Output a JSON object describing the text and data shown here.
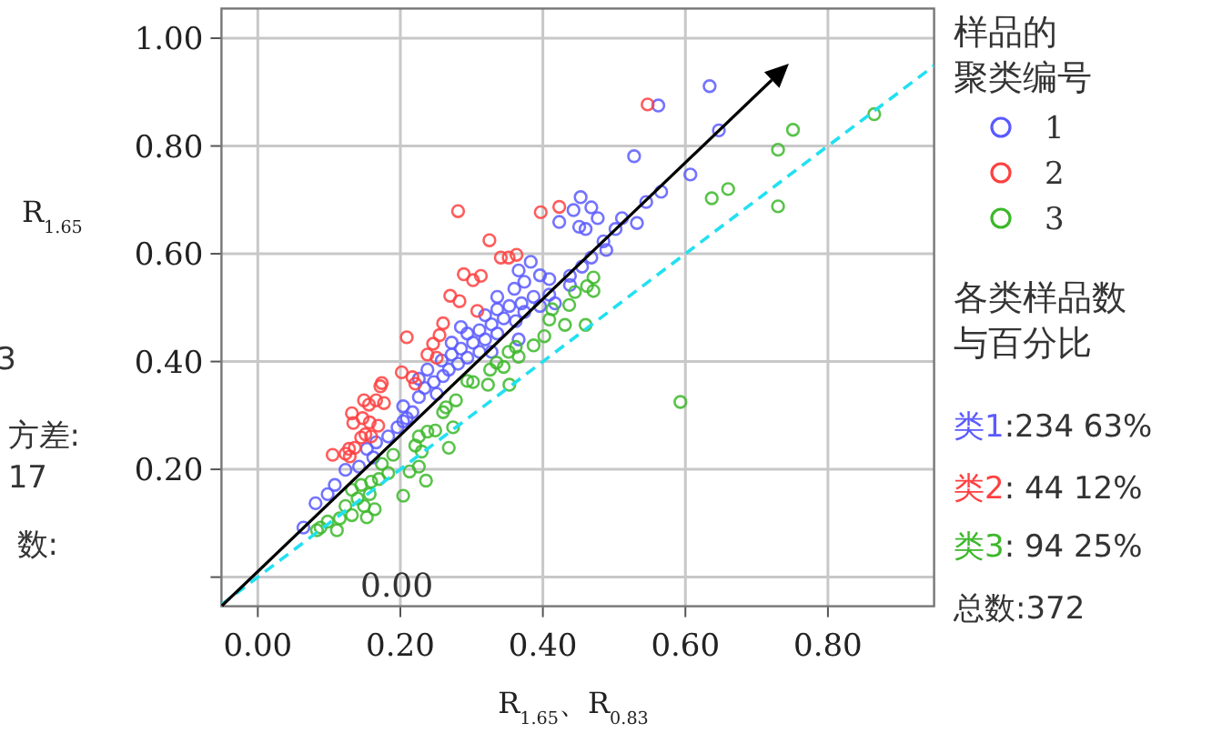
{
  "chart_data": {
    "type": "scatter",
    "xlabel": "R$_{1.65}$、R$_{0.83}$",
    "ylabel": "R$_{1.65}$",
    "legend_title": "样品的聚类编号",
    "legend": "right",
    "grid": true,
    "xlim": [
      -0.051,
      0.949
    ],
    "ylim": [
      -0.054,
      1.055
    ],
    "xticks": [
      {
        "value": 0,
        "label": "0.00"
      },
      {
        "value": 0.2,
        "label": "0.20"
      },
      {
        "value": 0.4,
        "label": "0.40"
      },
      {
        "value": 0.6,
        "label": "0.60"
      },
      {
        "value": 0.8,
        "label": "0.80"
      }
    ],
    "yticks": [
      {
        "value": 0,
        "label": null
      },
      {
        "value": 0.2,
        "label": "0.20"
      },
      {
        "value": 0.4,
        "label": "0.40"
      },
      {
        "value": 0.6,
        "label": "0.60"
      },
      {
        "value": 0.8,
        "label": "0.80"
      },
      {
        "value": 1,
        "label": "1.00"
      }
    ],
    "annotations": [
      "0.00",
      "各类样品数与百分比",
      "类1:234  63%",
      "类2: 44  12%",
      "类3: 94  25%",
      "总数:372",
      "3",
      "方差:",
      "17",
      "数:"
    ],
    "series": [
      {
        "name": "1",
        "color": "#5a5aff",
        "marker": "circle",
        "x": [
          0.634,
          0.562,
          0.647,
          0.528,
          0.607,
          0.566,
          0.545,
          0.532,
          0.511,
          0.502,
          0.453,
          0.468,
          0.443,
          0.423,
          0.451,
          0.46,
          0.477,
          0.485,
          0.468,
          0.455,
          0.383,
          0.366,
          0.396,
          0.36,
          0.409,
          0.387,
          0.37,
          0.353,
          0.336,
          0.374,
          0.396,
          0.417,
          0.319,
          0.345,
          0.328,
          0.362,
          0.311,
          0.294,
          0.336,
          0.319,
          0.302,
          0.285,
          0.272,
          0.311,
          0.294,
          0.281,
          0.268,
          0.26,
          0.247,
          0.234,
          0.226,
          0.204,
          0.217,
          0.196,
          0.209,
          0.183,
          0.166,
          0.153,
          0.162,
          0.142,
          0.123,
          0.108,
          0.098,
          0.081,
          0.064,
          0.489,
          0.438,
          0.374,
          0.336,
          0.285,
          0.272,
          0.366,
          0.409,
          0.438,
          0.328,
          0.258,
          0.238,
          0.226,
          0.251,
          0.204
        ],
        "values": [
          0.911,
          0.875,
          0.829,
          0.781,
          0.747,
          0.715,
          0.696,
          0.657,
          0.666,
          0.646,
          0.705,
          0.686,
          0.681,
          0.659,
          0.65,
          0.646,
          0.666,
          0.623,
          0.593,
          0.576,
          0.585,
          0.569,
          0.56,
          0.535,
          0.524,
          0.52,
          0.508,
          0.503,
          0.497,
          0.492,
          0.503,
          0.508,
          0.486,
          0.48,
          0.469,
          0.475,
          0.458,
          0.452,
          0.452,
          0.441,
          0.435,
          0.424,
          0.413,
          0.418,
          0.407,
          0.396,
          0.385,
          0.373,
          0.362,
          0.351,
          0.334,
          0.317,
          0.306,
          0.278,
          0.295,
          0.261,
          0.25,
          0.238,
          0.222,
          0.205,
          0.199,
          0.171,
          0.154,
          0.137,
          0.092,
          0.607,
          0.542,
          0.548,
          0.52,
          0.464,
          0.435,
          0.441,
          0.553,
          0.559,
          0.418,
          0.402,
          0.385,
          0.368,
          0.34,
          0.289
        ]
      },
      {
        "name": "2",
        "color": "#ff4040",
        "marker": "circle",
        "x": [
          0.547,
          0.281,
          0.397,
          0.423,
          0.325,
          0.341,
          0.352,
          0.363,
          0.289,
          0.313,
          0.302,
          0.27,
          0.283,
          0.308,
          0.26,
          0.255,
          0.209,
          0.246,
          0.251,
          0.238,
          0.202,
          0.217,
          0.221,
          0.174,
          0.172,
          0.149,
          0.166,
          0.156,
          0.177,
          0.132,
          0.147,
          0.134,
          0.157,
          0.169,
          0.151,
          0.145,
          0.159,
          0.128,
          0.136,
          0.105,
          0.123,
          0.129
        ],
        "values": [
          0.877,
          0.679,
          0.677,
          0.687,
          0.625,
          0.593,
          0.593,
          0.598,
          0.562,
          0.559,
          0.551,
          0.522,
          0.512,
          0.494,
          0.471,
          0.449,
          0.445,
          0.433,
          0.407,
          0.413,
          0.38,
          0.371,
          0.359,
          0.36,
          0.354,
          0.328,
          0.328,
          0.32,
          0.323,
          0.304,
          0.295,
          0.286,
          0.287,
          0.281,
          0.265,
          0.259,
          0.261,
          0.238,
          0.24,
          0.227,
          0.229,
          0.224
        ]
      },
      {
        "name": "3",
        "color": "#3cb82a",
        "marker": "circle",
        "x": [
          0.865,
          0.751,
          0.73,
          0.73,
          0.66,
          0.637,
          0.593,
          0.471,
          0.462,
          0.471,
          0.445,
          0.437,
          0.413,
          0.46,
          0.431,
          0.409,
          0.402,
          0.387,
          0.362,
          0.366,
          0.352,
          0.335,
          0.345,
          0.326,
          0.353,
          0.323,
          0.302,
          0.294,
          0.278,
          0.264,
          0.26,
          0.274,
          0.249,
          0.238,
          0.226,
          0.221,
          0.268,
          0.23,
          0.19,
          0.174,
          0.183,
          0.17,
          0.159,
          0.145,
          0.132,
          0.157,
          0.14,
          0.123,
          0.149,
          0.164,
          0.132,
          0.153,
          0.204,
          0.213,
          0.236,
          0.226,
          0.098,
          0.088,
          0.111,
          0.083,
          0.115
        ],
        "values": [
          0.859,
          0.83,
          0.793,
          0.688,
          0.72,
          0.703,
          0.325,
          0.556,
          0.54,
          0.531,
          0.529,
          0.505,
          0.497,
          0.468,
          0.468,
          0.478,
          0.447,
          0.43,
          0.427,
          0.409,
          0.418,
          0.398,
          0.39,
          0.385,
          0.357,
          0.357,
          0.362,
          0.364,
          0.328,
          0.315,
          0.306,
          0.278,
          0.272,
          0.27,
          0.261,
          0.244,
          0.24,
          0.233,
          0.227,
          0.21,
          0.193,
          0.182,
          0.177,
          0.171,
          0.162,
          0.154,
          0.146,
          0.132,
          0.132,
          0.126,
          0.115,
          0.111,
          0.151,
          0.196,
          0.179,
          0.205,
          0.103,
          0.092,
          0.087,
          0.087,
          0.109
        ]
      },
      {
        "type": "line",
        "color": "#22e0f0",
        "line_style": "dashed",
        "marker": "none",
        "x": [
          -0.051,
          0.949
        ],
        "values": [
          -0.051,
          0.949
        ]
      }
    ]
  }
}
